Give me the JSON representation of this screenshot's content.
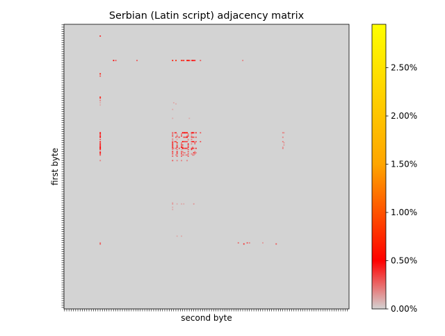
{
  "chart_data": {
    "type": "heatmap",
    "title": "Serbian (Latin script) adjacency matrix",
    "xlabel": "second byte",
    "ylabel": "first byte",
    "x_range": [
      0,
      255
    ],
    "y_range": [
      0,
      255
    ],
    "y_inverted": true,
    "tick_labels_shown": false,
    "background_value": 0,
    "colorbar": {
      "range": [
        0,
        2.95
      ],
      "ticks": [
        0,
        0.5,
        1.0,
        1.5,
        2.0,
        2.5
      ],
      "tick_labels": [
        "0.00%",
        "0.50%",
        "1.00%",
        "1.50%",
        "2.00%",
        "2.50%"
      ],
      "colors": [
        "#d3d3d3",
        "#ff0000",
        "#ffa500",
        "#ffff00"
      ]
    },
    "cells": [
      [
        65,
        32,
        0.6
      ],
      [
        66,
        32,
        0.3
      ],
      [
        68,
        32,
        0.2
      ],
      [
        70,
        32,
        0.1
      ],
      [
        72,
        32,
        0.1
      ],
      [
        97,
        32,
        0.5
      ],
      [
        98,
        32,
        0.4
      ],
      [
        99,
        32,
        0.3
      ],
      [
        100,
        32,
        0.4
      ],
      [
        101,
        32,
        0.5
      ],
      [
        103,
        32,
        0.3
      ],
      [
        105,
        32,
        0.4
      ],
      [
        106,
        32,
        0.3
      ],
      [
        107,
        32,
        0.4
      ],
      [
        108,
        32,
        0.4
      ],
      [
        109,
        32,
        0.4
      ],
      [
        110,
        32,
        0.5
      ],
      [
        111,
        32,
        0.5
      ],
      [
        112,
        32,
        0.4
      ],
      [
        114,
        32,
        0.3
      ],
      [
        115,
        32,
        0.5
      ],
      [
        116,
        32,
        0.3
      ],
      [
        117,
        32,
        0.3
      ],
      [
        122,
        32,
        0.2
      ],
      [
        196,
        32,
        0.2
      ],
      [
        197,
        32,
        0.3
      ],
      [
        10,
        32,
        0.4
      ],
      [
        32,
        44,
        0.5
      ],
      [
        32,
        46,
        0.3
      ],
      [
        32,
        65,
        0.3
      ],
      [
        32,
        97,
        0.6
      ],
      [
        32,
        100,
        0.7
      ],
      [
        32,
        105,
        0.7
      ],
      [
        32,
        106,
        0.3
      ],
      [
        32,
        107,
        0.4
      ],
      [
        32,
        110,
        0.6
      ],
      [
        32,
        111,
        0.6
      ],
      [
        32,
        112,
        0.4
      ],
      [
        32,
        114,
        0.3
      ],
      [
        32,
        115,
        0.5
      ],
      [
        32,
        116,
        0.4
      ],
      [
        32,
        117,
        0.4
      ],
      [
        32,
        122,
        0.3
      ],
      [
        32,
        160,
        0.2
      ],
      [
        44,
        32,
        0.6
      ],
      [
        46,
        32,
        0.3
      ],
      [
        97,
        97,
        0.3
      ],
      [
        97,
        99,
        0.3
      ],
      [
        97,
        100,
        0.4
      ],
      [
        97,
        106,
        0.5
      ],
      [
        97,
        107,
        0.4
      ],
      [
        97,
        108,
        0.5
      ],
      [
        97,
        109,
        0.4
      ],
      [
        97,
        110,
        0.6
      ],
      [
        97,
        114,
        0.4
      ],
      [
        97,
        115,
        0.5
      ],
      [
        97,
        116,
        0.4
      ],
      [
        97,
        118,
        0.4
      ],
      [
        97,
        122,
        0.3
      ],
      [
        98,
        97,
        0.2
      ],
      [
        98,
        105,
        0.2
      ],
      [
        98,
        111,
        0.2
      ],
      [
        98,
        114,
        0.2
      ],
      [
        99,
        97,
        0.2
      ],
      [
        99,
        105,
        0.2
      ],
      [
        99,
        111,
        0.2
      ],
      [
        100,
        97,
        0.3
      ],
      [
        100,
        101,
        0.3
      ],
      [
        100,
        105,
        0.3
      ],
      [
        100,
        110,
        0.2
      ],
      [
        100,
        111,
        0.3
      ],
      [
        100,
        114,
        0.2
      ],
      [
        101,
        100,
        0.3
      ],
      [
        101,
        103,
        0.3
      ],
      [
        101,
        107,
        0.3
      ],
      [
        101,
        108,
        0.3
      ],
      [
        101,
        109,
        0.3
      ],
      [
        101,
        110,
        0.5
      ],
      [
        101,
        114,
        0.3
      ],
      [
        101,
        115,
        0.3
      ],
      [
        101,
        116,
        0.3
      ],
      [
        101,
        118,
        0.3
      ],
      [
        103,
        97,
        0.2
      ],
      [
        103,
        111,
        0.2
      ],
      [
        103,
        114,
        0.2
      ],
      [
        105,
        97,
        0.3
      ],
      [
        105,
        99,
        0.3
      ],
      [
        105,
        100,
        0.3
      ],
      [
        105,
        106,
        0.6
      ],
      [
        105,
        107,
        0.3
      ],
      [
        105,
        108,
        0.3
      ],
      [
        105,
        109,
        0.3
      ],
      [
        105,
        110,
        0.3
      ],
      [
        105,
        114,
        0.3
      ],
      [
        105,
        115,
        0.4
      ],
      [
        105,
        116,
        0.4
      ],
      [
        105,
        118,
        0.3
      ],
      [
        105,
        122,
        0.3
      ],
      [
        106,
        97,
        0.4
      ],
      [
        106,
        101,
        0.7
      ],
      [
        106,
        105,
        0.2
      ],
      [
        106,
        117,
        0.3
      ],
      [
        107,
        97,
        0.3
      ],
      [
        107,
        105,
        0.2
      ],
      [
        107,
        111,
        0.4
      ],
      [
        107,
        114,
        0.2
      ],
      [
        107,
        117,
        0.2
      ],
      [
        108,
        97,
        0.4
      ],
      [
        108,
        101,
        0.3
      ],
      [
        108,
        105,
        0.3
      ],
      [
        108,
        111,
        0.3
      ],
      [
        108,
        106,
        0.3
      ],
      [
        109,
        97,
        0.3
      ],
      [
        109,
        101,
        0.3
      ],
      [
        109,
        105,
        0.2
      ],
      [
        109,
        111,
        0.2
      ],
      [
        110,
        97,
        0.4
      ],
      [
        110,
        101,
        0.4
      ],
      [
        110,
        105,
        0.5
      ],
      [
        110,
        111,
        0.4
      ],
      [
        110,
        106,
        0.3
      ],
      [
        110,
        115,
        0.2
      ],
      [
        111,
        97,
        0.3
      ],
      [
        111,
        98,
        0.2
      ],
      [
        111,
        100,
        0.3
      ],
      [
        111,
        106,
        0.5
      ],
      [
        111,
        107,
        0.3
      ],
      [
        111,
        108,
        0.3
      ],
      [
        111,
        109,
        0.4
      ],
      [
        111,
        110,
        0.3
      ],
      [
        111,
        114,
        0.3
      ],
      [
        111,
        115,
        0.4
      ],
      [
        111,
        116,
        0.3
      ],
      [
        111,
        118,
        0.4
      ],
      [
        111,
        103,
        0.3
      ],
      [
        112,
        97,
        0.2
      ],
      [
        112,
        111,
        0.3
      ],
      [
        112,
        114,
        0.4
      ],
      [
        112,
        101,
        0.2
      ],
      [
        114,
        97,
        0.4
      ],
      [
        114,
        101,
        0.4
      ],
      [
        114,
        105,
        0.3
      ],
      [
        114,
        111,
        0.3
      ],
      [
        114,
        117,
        0.2
      ],
      [
        114,
        106,
        0.2
      ],
      [
        115,
        97,
        0.2
      ],
      [
        115,
        101,
        0.3
      ],
      [
        115,
        107,
        0.2
      ],
      [
        115,
        108,
        0.2
      ],
      [
        115,
        116,
        0.4
      ],
      [
        115,
        118,
        0.2
      ],
      [
        115,
        105,
        0.2
      ],
      [
        115,
        117,
        0.2
      ],
      [
        116,
        97,
        0.3
      ],
      [
        116,
        101,
        0.3
      ],
      [
        116,
        105,
        0.3
      ],
      [
        116,
        111,
        0.3
      ],
      [
        116,
        114,
        0.2
      ],
      [
        116,
        117,
        0.2
      ],
      [
        117,
        100,
        0.2
      ],
      [
        117,
        106,
        0.2
      ],
      [
        117,
        107,
        0.2
      ],
      [
        117,
        109,
        0.2
      ],
      [
        117,
        110,
        0.2
      ],
      [
        117,
        115,
        0.2
      ],
      [
        117,
        116,
        0.2
      ],
      [
        118,
        97,
        0.3
      ],
      [
        118,
        101,
        0.3
      ],
      [
        118,
        105,
        0.3
      ],
      [
        118,
        111,
        0.3
      ],
      [
        122,
        97,
        0.3
      ],
      [
        122,
        105,
        0.2
      ],
      [
        122,
        110,
        0.2
      ],
      [
        122,
        101,
        0.2
      ],
      [
        84,
        97,
        0.1
      ],
      [
        84,
        112,
        0.1
      ],
      [
        70,
        98,
        0.1
      ],
      [
        71,
        100,
        0.1
      ],
      [
        76,
        97,
        0.1
      ],
      [
        97,
        196,
        0.2
      ],
      [
        101,
        196,
        0.2
      ],
      [
        105,
        196,
        0.2
      ],
      [
        111,
        196,
        0.2
      ],
      [
        110,
        196,
        0.15
      ],
      [
        108,
        197,
        0.15
      ],
      [
        97,
        197,
        0.15
      ],
      [
        106,
        197,
        0.15
      ],
      [
        196,
        156,
        0.25
      ],
      [
        196,
        164,
        0.3
      ],
      [
        196,
        166,
        0.2
      ],
      [
        196,
        178,
        0.15
      ],
      [
        197,
        161,
        0.4
      ],
      [
        197,
        190,
        0.3
      ],
      [
        160,
        97,
        0.1
      ],
      [
        164,
        97,
        0.1
      ],
      [
        166,
        97,
        0.1
      ],
      [
        161,
        97,
        0.15
      ],
      [
        161,
        101,
        0.1
      ],
      [
        161,
        105,
        0.1
      ],
      [
        161,
        116,
        0.15
      ],
      [
        161,
        107,
        0.1
      ],
      [
        190,
        101,
        0.1
      ],
      [
        190,
        105,
        0.1
      ],
      [
        101,
        102,
        0.15
      ],
      [
        102,
        97,
        0.1
      ],
      [
        104,
        97,
        0.1
      ],
      [
        104,
        111,
        0.1
      ],
      [
        99,
        101,
        0.1
      ],
      [
        98,
        101,
        0.1
      ],
      [
        103,
        101,
        0.1
      ],
      [
        112,
        105,
        0.1
      ],
      [
        116,
        115,
        0.1
      ]
    ]
  }
}
